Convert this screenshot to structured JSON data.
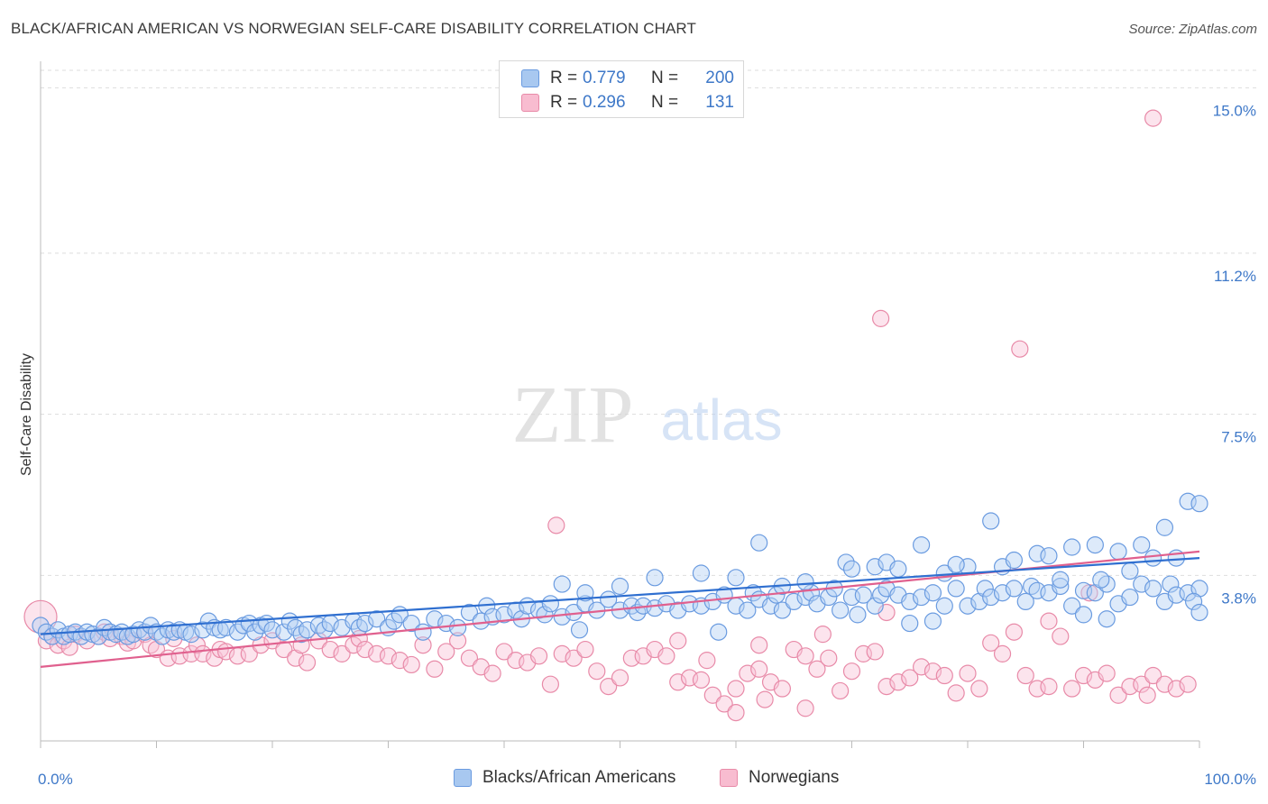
{
  "title": "BLACK/AFRICAN AMERICAN VS NORWEGIAN SELF-CARE DISABILITY CORRELATION CHART",
  "source": "Source: ZipAtlas.com",
  "watermark": {
    "zip": "ZIP",
    "atlas": "atlas"
  },
  "legend": {
    "rows": [
      {
        "r_label": "R = ",
        "r_value": "0.779",
        "n_label": "N = ",
        "n_value": "200",
        "color": "#a8c8f0",
        "border": "#6a9be0"
      },
      {
        "r_label": "R = ",
        "r_value": "0.296",
        "n_label": "N = ",
        "n_value": "131",
        "color": "#f8bcd0",
        "border": "#e88aa8"
      }
    ]
  },
  "bottom_legend": [
    {
      "label": "Blacks/African Americans",
      "color": "#a8c8f0",
      "border": "#6a9be0"
    },
    {
      "label": "Norwegians",
      "color": "#f8bcd0",
      "border": "#e88aa8"
    }
  ],
  "chart_data": {
    "type": "scatter",
    "ylabel": "Self-Care Disability",
    "xlabel": "",
    "x_tick_labels": [
      "0.0%",
      "100.0%"
    ],
    "y_tick_labels": [
      "3.8%",
      "7.5%",
      "11.2%",
      "15.0%"
    ],
    "y_ticks": [
      3.8,
      7.5,
      11.2,
      15.0
    ],
    "xlim": [
      0,
      100
    ],
    "ylim": [
      0,
      15.4
    ],
    "grid": "horizontal dashed",
    "colors": {
      "blue": "#6a9be0",
      "pink": "#e88aa8",
      "blue_line": "#2f6fd0",
      "pink_line": "#e0608e",
      "axis_text": "#3e78c8"
    },
    "series": [
      {
        "name": "Blacks/African Americans",
        "color": "#6a9be0",
        "trend": {
          "x": [
            0,
            100
          ],
          "y": [
            2.45,
            4.2
          ]
        },
        "points": [
          [
            0,
            2.65
          ],
          [
            0.5,
            2.5
          ],
          [
            1,
            2.4
          ],
          [
            1.5,
            2.55
          ],
          [
            2,
            2.4
          ],
          [
            2.5,
            2.45
          ],
          [
            3,
            2.5
          ],
          [
            3.5,
            2.4
          ],
          [
            4,
            2.5
          ],
          [
            4.5,
            2.45
          ],
          [
            5,
            2.4
          ],
          [
            5.5,
            2.6
          ],
          [
            6,
            2.5
          ],
          [
            6.5,
            2.45
          ],
          [
            7,
            2.5
          ],
          [
            7.5,
            2.4
          ],
          [
            8,
            2.45
          ],
          [
            8.5,
            2.55
          ],
          [
            9,
            2.5
          ],
          [
            9.5,
            2.65
          ],
          [
            10,
            2.5
          ],
          [
            10.5,
            2.4
          ],
          [
            11,
            2.55
          ],
          [
            11.5,
            2.5
          ],
          [
            12,
            2.55
          ],
          [
            12.5,
            2.5
          ],
          [
            13,
            2.45
          ],
          [
            14,
            2.55
          ],
          [
            14.5,
            2.75
          ],
          [
            15,
            2.6
          ],
          [
            15.5,
            2.55
          ],
          [
            16,
            2.6
          ],
          [
            17,
            2.5
          ],
          [
            17.5,
            2.65
          ],
          [
            18,
            2.7
          ],
          [
            18.5,
            2.5
          ],
          [
            19,
            2.65
          ],
          [
            19.5,
            2.7
          ],
          [
            20,
            2.55
          ],
          [
            21,
            2.5
          ],
          [
            21.5,
            2.75
          ],
          [
            22,
            2.6
          ],
          [
            22.5,
            2.45
          ],
          [
            23,
            2.55
          ],
          [
            24,
            2.65
          ],
          [
            24.5,
            2.55
          ],
          [
            25,
            2.7
          ],
          [
            26,
            2.6
          ],
          [
            27,
            2.75
          ],
          [
            27.5,
            2.6
          ],
          [
            28,
            2.7
          ],
          [
            29,
            2.8
          ],
          [
            30,
            2.6
          ],
          [
            30.5,
            2.75
          ],
          [
            31,
            2.9
          ],
          [
            32,
            2.7
          ],
          [
            33,
            2.5
          ],
          [
            34,
            2.8
          ],
          [
            35,
            2.7
          ],
          [
            36,
            2.6
          ],
          [
            37,
            2.95
          ],
          [
            38,
            2.75
          ],
          [
            38.5,
            3.1
          ],
          [
            39,
            2.85
          ],
          [
            40,
            2.9
          ],
          [
            41,
            3.0
          ],
          [
            41.5,
            2.8
          ],
          [
            42,
            3.1
          ],
          [
            43,
            3.0
          ],
          [
            43.5,
            2.9
          ],
          [
            44,
            3.15
          ],
          [
            45,
            2.85
          ],
          [
            46,
            2.95
          ],
          [
            46.5,
            2.55
          ],
          [
            47,
            3.15
          ],
          [
            48,
            3.0
          ],
          [
            49,
            3.25
          ],
          [
            50,
            3.0
          ],
          [
            51,
            3.1
          ],
          [
            51.5,
            2.95
          ],
          [
            52,
            3.1
          ],
          [
            53,
            3.05
          ],
          [
            54,
            3.15
          ],
          [
            55,
            3.0
          ],
          [
            56,
            3.15
          ],
          [
            57,
            3.1
          ],
          [
            58,
            3.2
          ],
          [
            58.5,
            2.5
          ],
          [
            59,
            3.35
          ],
          [
            60,
            3.1
          ],
          [
            61,
            3.0
          ],
          [
            61.5,
            3.4
          ],
          [
            62,
            3.25
          ],
          [
            63,
            3.1
          ],
          [
            63.5,
            3.35
          ],
          [
            64,
            3.0
          ],
          [
            65,
            3.2
          ],
          [
            66,
            3.3
          ],
          [
            66.5,
            3.4
          ],
          [
            67,
            3.15
          ],
          [
            68,
            3.3
          ],
          [
            68.5,
            3.5
          ],
          [
            69,
            3.0
          ],
          [
            70,
            3.3
          ],
          [
            70.5,
            2.9
          ],
          [
            71,
            3.35
          ],
          [
            72,
            3.1
          ],
          [
            72.5,
            3.35
          ],
          [
            73,
            3.5
          ],
          [
            74,
            3.35
          ],
          [
            75,
            3.2
          ],
          [
            76,
            3.3
          ],
          [
            77,
            3.4
          ],
          [
            78,
            3.1
          ],
          [
            79,
            3.5
          ],
          [
            80,
            3.1
          ],
          [
            81,
            3.2
          ],
          [
            81.5,
            3.5
          ],
          [
            82,
            3.3
          ],
          [
            83,
            3.4
          ],
          [
            84,
            3.5
          ],
          [
            85,
            3.2
          ],
          [
            85.5,
            3.55
          ],
          [
            86,
            3.45
          ],
          [
            87,
            3.4
          ],
          [
            88,
            3.55
          ],
          [
            89,
            3.1
          ],
          [
            90,
            3.45
          ],
          [
            91,
            3.4
          ],
          [
            92,
            3.6
          ],
          [
            93,
            3.15
          ],
          [
            94,
            3.3
          ],
          [
            95,
            3.6
          ],
          [
            96,
            3.5
          ],
          [
            97,
            3.2
          ],
          [
            97.5,
            3.6
          ],
          [
            98,
            3.35
          ],
          [
            99,
            3.4
          ],
          [
            100,
            3.5
          ],
          [
            62,
            4.55
          ],
          [
            76,
            4.5
          ],
          [
            82,
            5.05
          ],
          [
            91,
            4.5
          ],
          [
            95,
            4.5
          ],
          [
            97,
            4.9
          ],
          [
            99,
            5.5
          ],
          [
            100,
            5.45
          ],
          [
            86,
            4.3
          ],
          [
            89,
            4.45
          ],
          [
            93,
            4.35
          ],
          [
            69.5,
            4.1
          ],
          [
            72,
            4.0
          ],
          [
            78,
            3.85
          ],
          [
            80,
            4.0
          ],
          [
            83,
            4.0
          ],
          [
            88,
            3.7
          ],
          [
            90,
            2.9
          ],
          [
            92,
            2.8
          ],
          [
            94,
            3.9
          ],
          [
            96,
            4.2
          ],
          [
            98,
            4.2
          ],
          [
            99.5,
            3.2
          ],
          [
            100,
            2.95
          ],
          [
            75,
            2.7
          ],
          [
            77,
            2.75
          ],
          [
            57,
            3.85
          ],
          [
            47,
            3.4
          ],
          [
            50,
            3.55
          ],
          [
            53,
            3.75
          ],
          [
            45,
            3.6
          ],
          [
            60,
            3.75
          ],
          [
            64,
            3.55
          ],
          [
            66,
            3.65
          ],
          [
            70,
            3.95
          ],
          [
            73,
            4.1
          ],
          [
            74,
            3.95
          ],
          [
            79,
            4.05
          ],
          [
            84,
            4.15
          ],
          [
            87,
            4.25
          ],
          [
            91.5,
            3.7
          ]
        ]
      },
      {
        "name": "Norwegians",
        "color": "#e88aa8",
        "trend": {
          "x": [
            0,
            100
          ],
          "y": [
            1.7,
            4.35
          ]
        },
        "points": [
          [
            0,
            2.85
          ],
          [
            0.5,
            2.3
          ],
          [
            1,
            2.4
          ],
          [
            1.5,
            2.2
          ],
          [
            2,
            2.3
          ],
          [
            2.5,
            2.15
          ],
          [
            3,
            2.45
          ],
          [
            4,
            2.3
          ],
          [
            5,
            2.4
          ],
          [
            5.5,
            2.5
          ],
          [
            6,
            2.35
          ],
          [
            7,
            2.4
          ],
          [
            7.5,
            2.25
          ],
          [
            8,
            2.3
          ],
          [
            9,
            2.45
          ],
          [
            9.5,
            2.2
          ],
          [
            10,
            2.1
          ],
          [
            11,
            1.9
          ],
          [
            11.5,
            2.35
          ],
          [
            12,
            1.95
          ],
          [
            13,
            2.0
          ],
          [
            13.5,
            2.2
          ],
          [
            14,
            2.0
          ],
          [
            15,
            1.9
          ],
          [
            15.5,
            2.1
          ],
          [
            16,
            2.05
          ],
          [
            17,
            1.95
          ],
          [
            18,
            2.0
          ],
          [
            19,
            2.2
          ],
          [
            20,
            2.3
          ],
          [
            21,
            2.1
          ],
          [
            22,
            1.9
          ],
          [
            22.5,
            2.2
          ],
          [
            23,
            1.8
          ],
          [
            24,
            2.3
          ],
          [
            25,
            2.1
          ],
          [
            26,
            2.0
          ],
          [
            27,
            2.2
          ],
          [
            27.5,
            2.35
          ],
          [
            28,
            2.1
          ],
          [
            29,
            2.0
          ],
          [
            30,
            1.95
          ],
          [
            31,
            1.85
          ],
          [
            32,
            1.75
          ],
          [
            33,
            2.2
          ],
          [
            34,
            1.65
          ],
          [
            35,
            2.05
          ],
          [
            36,
            2.3
          ],
          [
            37,
            1.9
          ],
          [
            38,
            1.7
          ],
          [
            39,
            1.55
          ],
          [
            40,
            2.05
          ],
          [
            41,
            1.85
          ],
          [
            42,
            1.8
          ],
          [
            43,
            1.95
          ],
          [
            44,
            1.3
          ],
          [
            45,
            2.0
          ],
          [
            46,
            1.9
          ],
          [
            47,
            2.1
          ],
          [
            48,
            1.6
          ],
          [
            49,
            1.25
          ],
          [
            50,
            1.45
          ],
          [
            51,
            1.9
          ],
          [
            52,
            1.95
          ],
          [
            53,
            2.1
          ],
          [
            54,
            1.95
          ],
          [
            55,
            1.35
          ],
          [
            56,
            1.45
          ],
          [
            57,
            1.4
          ],
          [
            57.5,
            1.85
          ],
          [
            58,
            1.05
          ],
          [
            59,
            0.85
          ],
          [
            60,
            1.2
          ],
          [
            61,
            1.55
          ],
          [
            62,
            1.65
          ],
          [
            63,
            1.35
          ],
          [
            64,
            1.2
          ],
          [
            65,
            2.1
          ],
          [
            66,
            1.95
          ],
          [
            67,
            1.65
          ],
          [
            68,
            1.9
          ],
          [
            69,
            1.15
          ],
          [
            70,
            1.6
          ],
          [
            71,
            2.0
          ],
          [
            72,
            2.05
          ],
          [
            73,
            1.25
          ],
          [
            74,
            1.35
          ],
          [
            75,
            1.45
          ],
          [
            76,
            1.7
          ],
          [
            77,
            1.6
          ],
          [
            78,
            1.5
          ],
          [
            79,
            1.1
          ],
          [
            80,
            1.55
          ],
          [
            81,
            1.2
          ],
          [
            82,
            2.25
          ],
          [
            83,
            2.0
          ],
          [
            84,
            2.5
          ],
          [
            85,
            1.5
          ],
          [
            86,
            1.2
          ],
          [
            87,
            1.25
          ],
          [
            88,
            2.4
          ],
          [
            89,
            1.2
          ],
          [
            90,
            1.5
          ],
          [
            91,
            1.4
          ],
          [
            92,
            1.55
          ],
          [
            93,
            1.05
          ],
          [
            94,
            1.25
          ],
          [
            95,
            1.3
          ],
          [
            96,
            1.5
          ],
          [
            97,
            1.3
          ],
          [
            98,
            1.2
          ],
          [
            99,
            1.3
          ],
          [
            44.5,
            4.95
          ],
          [
            60,
            0.65
          ],
          [
            62.5,
            0.95
          ],
          [
            66,
            0.75
          ],
          [
            72.5,
            9.7
          ],
          [
            84.5,
            9.0
          ],
          [
            96,
            14.3
          ],
          [
            62,
            2.2
          ],
          [
            55,
            2.3
          ],
          [
            67.5,
            2.45
          ],
          [
            73,
            2.95
          ],
          [
            87,
            2.75
          ],
          [
            90.5,
            3.4
          ],
          [
            95.5,
            1.05
          ]
        ]
      }
    ]
  }
}
